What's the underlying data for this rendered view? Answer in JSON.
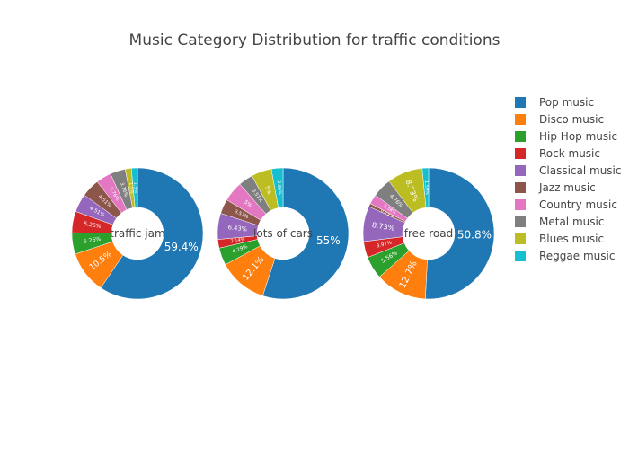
{
  "chart_data": {
    "type": "pie",
    "title": "Music Category Distribution for traffic conditions",
    "legend_position": "right",
    "categories": [
      "Pop music",
      "Disco music",
      "Hip Hop music",
      "Rock music",
      "Classical music",
      "Jazz music",
      "Country music",
      "Metal music",
      "Blues music",
      "Reggae music"
    ],
    "colors": [
      "#1f77b4",
      "#ff7f0e",
      "#2ca02c",
      "#d62728",
      "#9467bd",
      "#8c564b",
      "#e377c2",
      "#7f7f7f",
      "#bcbd22",
      "#17becf"
    ],
    "series": [
      {
        "name": "traffic jam",
        "values": [
          59.4,
          10.5,
          5.26,
          5.26,
          4.51,
          4.51,
          3.76,
          3.76,
          1.5,
          1.5
        ],
        "labels": [
          "59.4%",
          "10.5%",
          "5.26%",
          "5.26%",
          "4.51%",
          "4.51%",
          "3.76%",
          "3.76%",
          "1.5%",
          "1.5%"
        ]
      },
      {
        "name": "lots of cars",
        "values": [
          55,
          12.1,
          4.29,
          2.14,
          6.43,
          3.57,
          5,
          3.57,
          5,
          2.86
        ],
        "labels": [
          "55%",
          "12.1%",
          "4.29%",
          "2.14%",
          "6.43%",
          "3.57%",
          "5%",
          "3.57%",
          "5%",
          "2.86%"
        ]
      },
      {
        "name": "free road",
        "values": [
          50.8,
          12.7,
          5.56,
          3.97,
          8.73,
          0.79,
          2.38,
          4.76,
          8.73,
          1.59
        ],
        "labels": [
          "50.8%",
          "12.7%",
          "5.56%",
          "3.97%",
          "8.73%",
          "0.79%",
          "2.38%",
          "4.76%",
          "8.73%",
          "1.59%"
        ]
      }
    ]
  }
}
